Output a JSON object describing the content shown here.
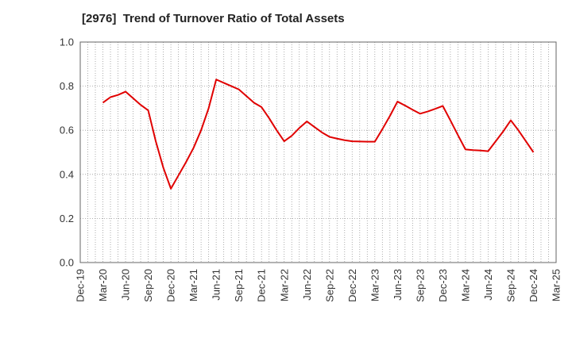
{
  "chart_data": {
    "type": "line",
    "title": "[2976]  Trend of Turnover Ratio of Total Assets",
    "xlabel": "",
    "ylabel": "",
    "ylim": [
      0.0,
      1.0
    ],
    "y_ticks": [
      "0.0",
      "0.2",
      "0.4",
      "0.6",
      "0.8",
      "1.0"
    ],
    "x_ticks": [
      "Dec-19",
      "Mar-20",
      "Jun-20",
      "Sep-20",
      "Dec-20",
      "Mar-21",
      "Jun-21",
      "Sep-21",
      "Dec-21",
      "Mar-22",
      "Jun-22",
      "Sep-22",
      "Dec-22",
      "Mar-23",
      "Jun-23",
      "Sep-23",
      "Dec-23",
      "Mar-24",
      "Jun-24",
      "Sep-24",
      "Dec-24",
      "Mar-25"
    ],
    "grid": true,
    "series": [
      {
        "color": "#e00000",
        "x": [
          "Mar-20",
          "Apr-20",
          "May-20",
          "Jun-20",
          "Jul-20",
          "Aug-20",
          "Sep-20",
          "Oct-20",
          "Nov-20",
          "Dec-20",
          "Jan-21",
          "Feb-21",
          "Mar-21",
          "Apr-21",
          "May-21",
          "Jun-21",
          "Jul-21",
          "Aug-21",
          "Sep-21",
          "Oct-21",
          "Nov-21",
          "Dec-21",
          "Jan-22",
          "Feb-22",
          "Mar-22",
          "Apr-22",
          "May-22",
          "Jun-22",
          "Jul-22",
          "Aug-22",
          "Sep-22",
          "Oct-22",
          "Nov-22",
          "Dec-22",
          "Jan-23",
          "Feb-23",
          "Mar-23",
          "Apr-23",
          "May-23",
          "Jun-23",
          "Jul-23",
          "Aug-23",
          "Sep-23",
          "Oct-23",
          "Nov-23",
          "Dec-23",
          "Jan-24",
          "Feb-24",
          "Mar-24",
          "Apr-24",
          "May-24",
          "Jun-24",
          "Jul-24",
          "Aug-24",
          "Sep-24",
          "Oct-24",
          "Nov-24",
          "Dec-24"
        ],
        "values": [
          0.725,
          0.75,
          0.76,
          0.775,
          0.745,
          0.715,
          0.69,
          0.55,
          0.43,
          0.335,
          0.395,
          0.455,
          0.52,
          0.6,
          0.7,
          0.83,
          0.815,
          0.8,
          0.785,
          0.755,
          0.725,
          0.705,
          0.655,
          0.6,
          0.55,
          0.575,
          0.61,
          0.64,
          0.615,
          0.59,
          0.57,
          0.562,
          0.555,
          0.55,
          0.549,
          0.548,
          0.548,
          0.605,
          0.665,
          0.73,
          0.712,
          0.693,
          0.675,
          0.685,
          0.697,
          0.71,
          0.645,
          0.578,
          0.513,
          0.51,
          0.508,
          0.505,
          0.55,
          0.595,
          0.645,
          0.6,
          0.55,
          0.5
        ]
      }
    ]
  }
}
